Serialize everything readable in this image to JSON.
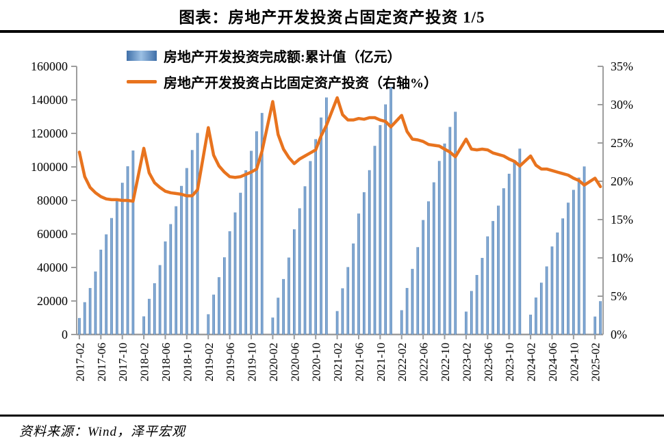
{
  "title": "图表：房地产开发投资占固定资产投资 1/5",
  "source": "资料来源：Wind，泽平宏观",
  "colors": {
    "bar_edge": "#3f6fa8",
    "bar_light": "#9cc0e4",
    "line": "#e8731e",
    "axis": "#9d9d9d",
    "rule": "#000000"
  },
  "chart_data": {
    "type": "bar+line",
    "title": "图表：房地产开发投资占固定资产投资 1/5",
    "legend_position": "top",
    "grid": false,
    "left_axis": {
      "min": 0,
      "max": 160000,
      "step": 20000,
      "tick_labels": [
        "0",
        "20000",
        "40000",
        "60000",
        "80000",
        "100000",
        "120000",
        "140000",
        "160000"
      ]
    },
    "right_axis": {
      "min": 0,
      "max": 35,
      "step": 5,
      "tick_labels": [
        "0%",
        "5%",
        "10%",
        "15%",
        "20%",
        "25%",
        "30%",
        "35%"
      ]
    },
    "x_tick_labels": [
      "2017-02",
      "2017-06",
      "2017-10",
      "2018-02",
      "2018-06",
      "2018-10",
      "2019-02",
      "2019-06",
      "2019-10",
      "2020-02",
      "2020-06",
      "2020-10",
      "2021-02",
      "2021-06",
      "2021-10",
      "2022-02",
      "2022-06",
      "2022-10",
      "2023-02",
      "2023-06",
      "2023-10",
      "2024-02",
      "2024-06",
      "2024-10",
      "2025-02"
    ],
    "months": [
      "2017-02",
      "2017-03",
      "2017-04",
      "2017-05",
      "2017-06",
      "2017-07",
      "2017-08",
      "2017-09",
      "2017-10",
      "2017-11",
      "2017-12",
      "2018-02",
      "2018-03",
      "2018-04",
      "2018-05",
      "2018-06",
      "2018-07",
      "2018-08",
      "2018-09",
      "2018-10",
      "2018-11",
      "2018-12",
      "2019-02",
      "2019-03",
      "2019-04",
      "2019-05",
      "2019-06",
      "2019-07",
      "2019-08",
      "2019-09",
      "2019-10",
      "2019-11",
      "2019-12",
      "2020-02",
      "2020-03",
      "2020-04",
      "2020-05",
      "2020-06",
      "2020-07",
      "2020-08",
      "2020-09",
      "2020-10",
      "2020-11",
      "2020-12",
      "2021-02",
      "2021-03",
      "2021-04",
      "2021-05",
      "2021-06",
      "2021-07",
      "2021-08",
      "2021-09",
      "2021-10",
      "2021-11",
      "2021-12",
      "2022-02",
      "2022-03",
      "2022-04",
      "2022-05",
      "2022-06",
      "2022-07",
      "2022-08",
      "2022-09",
      "2022-10",
      "2022-11",
      "2022-12",
      "2023-02",
      "2023-03",
      "2023-04",
      "2023-05",
      "2023-06",
      "2023-07",
      "2023-08",
      "2023-09",
      "2023-10",
      "2023-11",
      "2023-12",
      "2024-02",
      "2024-03",
      "2024-04",
      "2024-05",
      "2024-06",
      "2024-07",
      "2024-08",
      "2024-09",
      "2024-10",
      "2024-11",
      "2024-12",
      "2025-02",
      "2025-03"
    ],
    "series": [
      {
        "name": "房地产开发投资完成额:累计值（亿元）",
        "type": "bar",
        "axis": "left",
        "values": [
          9854,
          19292,
          27732,
          37595,
          50610,
          59761,
          69494,
          80644,
          90544,
          100387,
          109799,
          10831,
          21291,
          30592,
          41420,
          55531,
          65886,
          76519,
          88665,
          99325,
          110083,
          120264,
          12090,
          23803,
          34217,
          46075,
          61609,
          72843,
          84589,
          98008,
          109603,
          121265,
          132194,
          10115,
          21963,
          33103,
          45920,
          62780,
          75325,
          88454,
          103484,
          116556,
          129492,
          141443,
          13986,
          27576,
          40240,
          54318,
          72179,
          84895,
          98060,
          112568,
          124934,
          137314,
          147602,
          14499,
          27765,
          39154,
          52134,
          68314,
          79462,
          90809,
          103559,
          113945,
          123863,
          132895,
          13669,
          25974,
          35514,
          45701,
          58550,
          67717,
          76900,
          87269,
          95922,
          104045,
          110913,
          11842,
          22082,
          30928,
          40632,
          52529,
          60877,
          69284,
          78680,
          86309,
          93634,
          100280,
          10720,
          19904
        ]
      },
      {
        "name": "房地产开发投资占比固定资产投资（右轴%）",
        "type": "line",
        "axis": "right",
        "values": [
          23.8,
          20.6,
          19.2,
          18.5,
          18.0,
          17.7,
          17.6,
          17.6,
          17.5,
          17.5,
          17.4,
          24.3,
          21.1,
          19.8,
          19.2,
          18.7,
          18.5,
          18.4,
          18.3,
          18.1,
          18.1,
          18.9,
          27.0,
          23.4,
          22.0,
          21.2,
          20.6,
          20.5,
          20.6,
          20.9,
          21.2,
          21.6,
          23.9,
          30.4,
          26.1,
          24.2,
          23.1,
          22.3,
          22.9,
          23.3,
          23.7,
          24.1,
          25.9,
          27.3,
          30.9,
          28.7,
          28.0,
          28.0,
          28.2,
          28.1,
          28.3,
          28.3,
          28.0,
          27.8,
          27.1,
          28.6,
          26.5,
          25.5,
          25.4,
          25.2,
          24.8,
          24.7,
          24.6,
          24.2,
          23.8,
          23.2,
          25.5,
          24.2,
          24.1,
          24.2,
          24.1,
          23.7,
          23.5,
          23.3,
          22.9,
          22.6,
          22.0,
          23.3,
          22.1,
          21.6,
          21.6,
          21.4,
          21.2,
          21.0,
          20.8,
          20.4,
          20.1,
          19.5,
          20.4,
          19.3
        ]
      }
    ]
  }
}
